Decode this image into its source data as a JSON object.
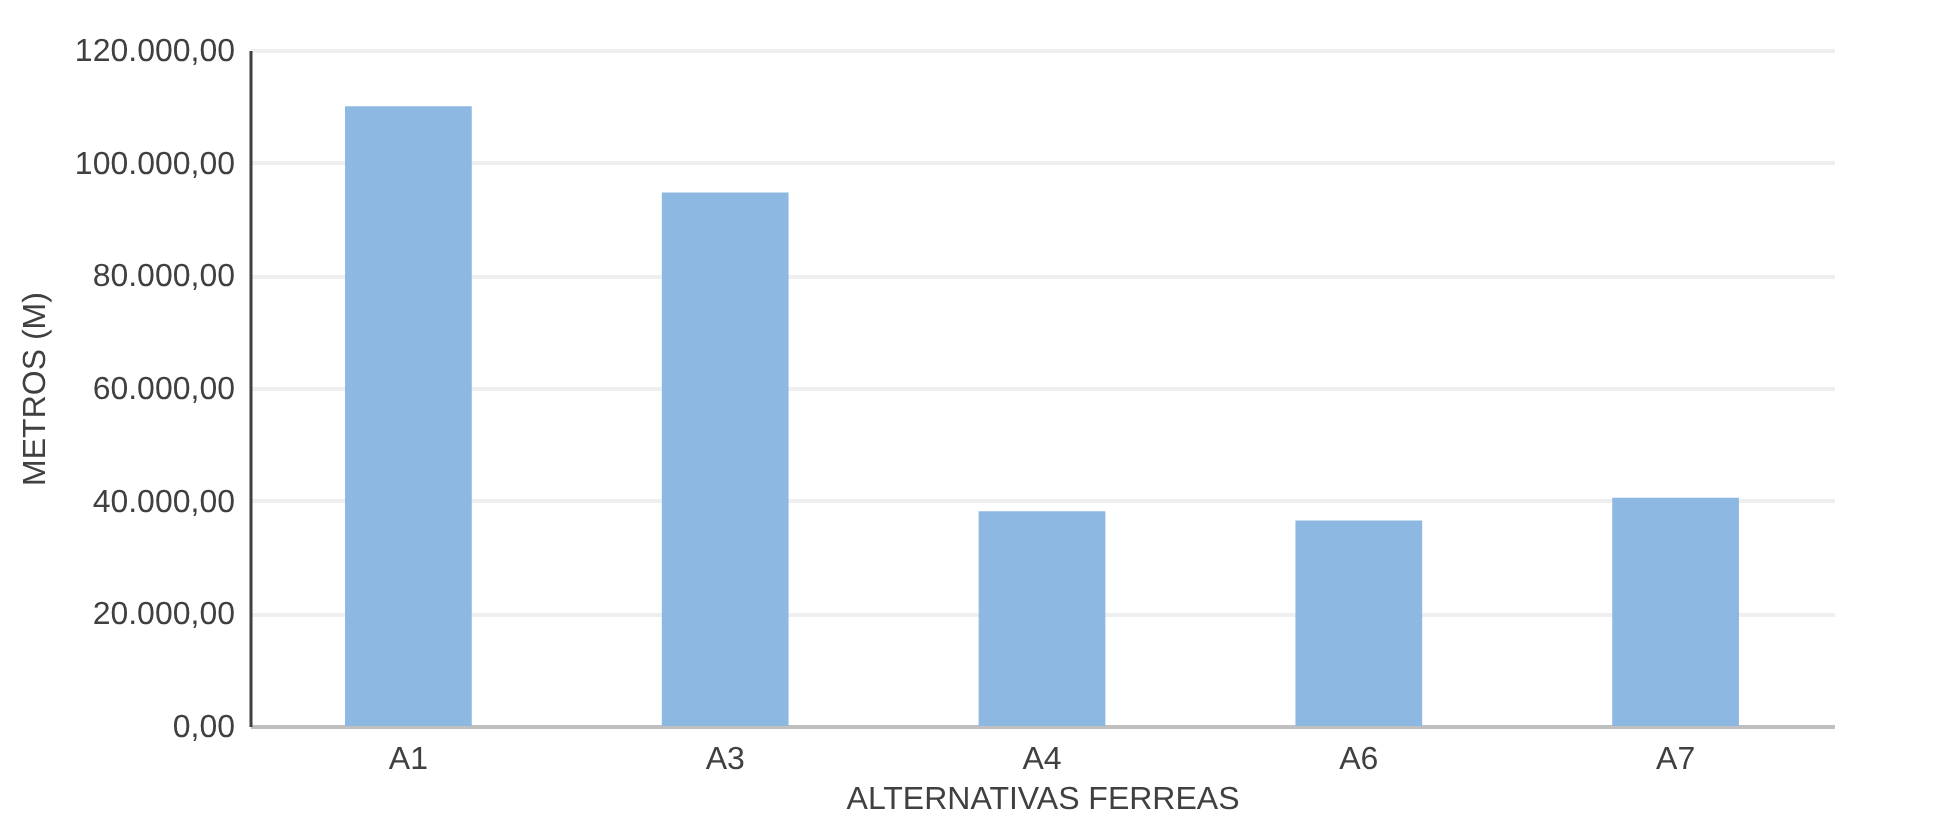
{
  "chart_data": {
    "type": "bar",
    "xlabel": "ALTERNATIVAS FERREAS",
    "ylabel": "METROS  (M)",
    "categories": [
      "A1",
      "A3",
      "A4",
      "A6",
      "A7"
    ],
    "values": [
      110000,
      94700,
      38100,
      36500,
      40500
    ],
    "color": "#8cb8e2",
    "ylim": [
      0,
      120000
    ],
    "yticks": [
      {
        "value": 0,
        "label": "0,00"
      },
      {
        "value": 20000,
        "label": "20.000,00"
      },
      {
        "value": 40000,
        "label": "40.000,00"
      },
      {
        "value": 60000,
        "label": "60.000,00"
      },
      {
        "value": 80000,
        "label": "80.000,00"
      },
      {
        "value": 100000,
        "label": "100.000,00"
      },
      {
        "value": 120000,
        "label": "120.000,00"
      }
    ],
    "grid": "y"
  }
}
